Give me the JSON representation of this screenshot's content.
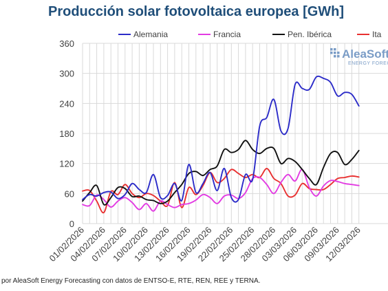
{
  "chart_data": {
    "type": "line",
    "title": "Producción solar fotovoltaica europea [GWh]",
    "ylim": [
      0,
      360
    ],
    "yticks": [
      0,
      60,
      120,
      180,
      240,
      300,
      360
    ],
    "grid": true,
    "legend_position": "top",
    "x": [
      "01/02/2026",
      "02/02/2026",
      "03/02/2026",
      "04/02/2026",
      "05/02/2026",
      "06/02/2026",
      "07/02/2026",
      "08/02/2026",
      "09/02/2026",
      "10/02/2026",
      "11/02/2026",
      "12/02/2026",
      "13/02/2026",
      "14/02/2026",
      "15/02/2026",
      "16/02/2026",
      "17/02/2026",
      "18/02/2026",
      "19/02/2026",
      "20/02/2026",
      "21/02/2026",
      "22/02/2026",
      "23/02/2026",
      "24/02/2026",
      "25/02/2026",
      "26/02/2026",
      "27/02/2026",
      "28/02/2026",
      "01/03/2026",
      "02/03/2026",
      "03/03/2026",
      "04/03/2026",
      "05/03/2026",
      "06/03/2026",
      "07/03/2026",
      "08/03/2026",
      "09/03/2026",
      "10/03/2026",
      "11/03/2026",
      "12/03/2026"
    ],
    "xtick_labels": [
      "01/02/2026",
      "04/02/2026",
      "07/02/2026",
      "10/02/2026",
      "13/02/2026",
      "16/02/2026",
      "19/02/2026",
      "22/02/2026",
      "25/02/2026",
      "28/02/2026",
      "03/03/2026",
      "06/03/2026",
      "09/03/2026",
      "12/03/2026"
    ],
    "series": [
      {
        "name": "Alemania",
        "color": "#2b2bc8",
        "values": [
          48,
          58,
          55,
          62,
          63,
          50,
          58,
          80,
          68,
          62,
          98,
          52,
          56,
          80,
          46,
          118,
          62,
          80,
          102,
          66,
          110,
          52,
          48,
          98,
          88,
          195,
          212,
          248,
          185,
          190,
          278,
          270,
          268,
          293,
          290,
          282,
          255,
          262,
          258,
          235
        ]
      },
      {
        "name": "Francia",
        "color": "#e23be2",
        "values": [
          38,
          36,
          57,
          48,
          33,
          45,
          52,
          42,
          28,
          40,
          25,
          45,
          38,
          32,
          38,
          40,
          47,
          58,
          52,
          40,
          55,
          57,
          50,
          62,
          90,
          92,
          78,
          60,
          82,
          98,
          85,
          108,
          72,
          55,
          75,
          86,
          84,
          80,
          78,
          76
        ]
      },
      {
        "name": "Pen. Ibérica",
        "color": "#111111",
        "values": [
          45,
          62,
          76,
          38,
          52,
          72,
          70,
          54,
          55,
          48,
          46,
          40,
          45,
          62,
          78,
          100,
          104,
          96,
          108,
          115,
          148,
          142,
          148,
          166,
          148,
          140,
          150,
          150,
          120,
          130,
          124,
          108,
          90,
          78,
          112,
          140,
          142,
          118,
          128,
          146
        ]
      },
      {
        "name": "Italia",
        "color": "#e83030",
        "values": [
          65,
          66,
          45,
          22,
          64,
          58,
          78,
          60,
          52,
          60,
          56,
          45,
          36,
          82,
          32,
          72,
          58,
          76,
          102,
          82,
          90,
          108,
          100,
          92,
          98,
          92,
          110,
          90,
          80,
          55,
          57,
          80,
          70,
          68,
          68,
          78,
          90,
          92,
          95,
          93
        ]
      }
    ]
  },
  "legend_visible": [
    "Alemania",
    "Francia",
    "Pen. Ibérica",
    "Ita"
  ],
  "logo": {
    "name": "AleaSoft",
    "tagline": "ENERGY FORECASTING",
    "color": "#7a9cc6"
  },
  "source_note": "por AleaSoft Energy Forecasting con datos de ENTSO-E, RTE, REN, REE y TERNA.",
  "colors": {
    "title": "#1f4e79",
    "grid": "#d9d9d9",
    "tick_text": "#404040"
  }
}
